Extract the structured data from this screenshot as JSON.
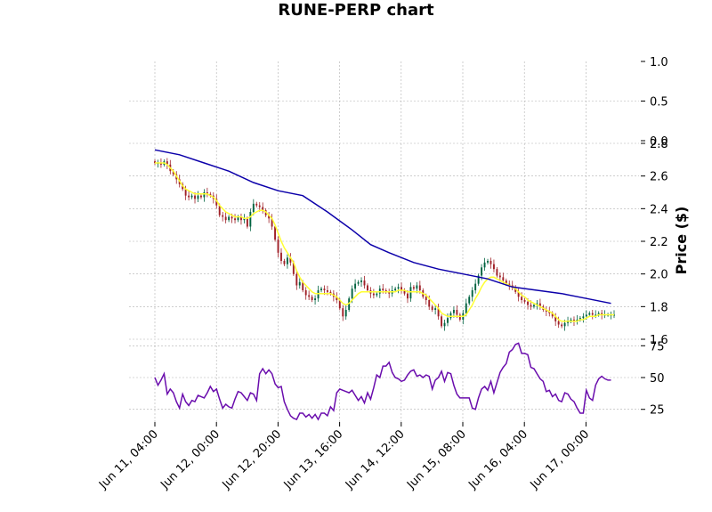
{
  "chart_data": {
    "type": "candlestick",
    "title": "RUNE-PERP chart",
    "colors": {
      "up": "#006340",
      "down": "#a02128",
      "ma_fast": "#ffff33",
      "ma_slow": "#0c00aa",
      "rsi": "#6a0dad",
      "grid": "#b0b0b0"
    },
    "grid": true,
    "x_ticks": [
      "Jun 11, 04:00",
      "Jun 12, 00:00",
      "Jun 12, 20:00",
      "Jun 13, 16:00",
      "Jun 14, 12:00",
      "Jun 15, 08:00",
      "Jun 16, 04:00",
      "Jun 17, 00:00"
    ],
    "x_tick_index": [
      0,
      20,
      40,
      60,
      80,
      100,
      120,
      140
    ],
    "top_panel": {
      "yticks": [
        0.0,
        0.5,
        1.0
      ],
      "ylim": [
        0,
        1
      ]
    },
    "price_panel": {
      "ylabel": "Price ($)",
      "ylim": [
        1.6,
        2.8
      ],
      "yticks": [
        1.6,
        1.8,
        2.0,
        2.2,
        2.4,
        2.6,
        2.8
      ],
      "close": [
        2.68,
        2.68,
        2.67,
        2.69,
        2.67,
        2.63,
        2.61,
        2.58,
        2.55,
        2.52,
        2.48,
        2.47,
        2.48,
        2.46,
        2.48,
        2.47,
        2.5,
        2.49,
        2.48,
        2.46,
        2.42,
        2.36,
        2.35,
        2.33,
        2.35,
        2.34,
        2.33,
        2.35,
        2.33,
        2.34,
        2.29,
        2.38,
        2.43,
        2.42,
        2.41,
        2.39,
        2.36,
        2.34,
        2.29,
        2.21,
        2.13,
        2.08,
        2.06,
        2.1,
        2.07,
        2.0,
        1.93,
        1.95,
        1.9,
        1.87,
        1.86,
        1.84,
        1.85,
        1.9,
        1.91,
        1.9,
        1.89,
        1.88,
        1.86,
        1.84,
        1.79,
        1.74,
        1.78,
        1.85,
        1.91,
        1.94,
        1.95,
        1.96,
        1.93,
        1.9,
        1.88,
        1.87,
        1.88,
        1.91,
        1.9,
        1.89,
        1.88,
        1.9,
        1.91,
        1.92,
        1.9,
        1.88,
        1.85,
        1.92,
        1.91,
        1.93,
        1.9,
        1.86,
        1.84,
        1.8,
        1.78,
        1.79,
        1.74,
        1.68,
        1.7,
        1.73,
        1.76,
        1.78,
        1.75,
        1.72,
        1.76,
        1.82,
        1.86,
        1.9,
        1.94,
        1.99,
        2.04,
        2.07,
        2.08,
        2.06,
        2.03,
        1.99,
        1.98,
        1.96,
        1.94,
        1.93,
        1.92,
        1.89,
        1.86,
        1.84,
        1.83,
        1.81,
        1.8,
        1.81,
        1.82,
        1.8,
        1.78,
        1.77,
        1.76,
        1.74,
        1.71,
        1.69,
        1.68,
        1.7,
        1.71,
        1.72,
        1.71,
        1.72,
        1.73,
        1.74,
        1.75,
        1.76,
        1.75,
        1.75,
        1.76,
        1.75,
        1.75,
        1.75,
        1.75,
        1.75
      ],
      "ma_fast": [
        2.68,
        2.68,
        2.68,
        2.68,
        2.67,
        2.65,
        2.63,
        2.6,
        2.57,
        2.54,
        2.52,
        2.51,
        2.5,
        2.49,
        2.49,
        2.49,
        2.49,
        2.49,
        2.48,
        2.47,
        2.45,
        2.42,
        2.4,
        2.38,
        2.37,
        2.36,
        2.35,
        2.35,
        2.35,
        2.34,
        2.34,
        2.35,
        2.37,
        2.38,
        2.39,
        2.39,
        2.38,
        2.36,
        2.34,
        2.3,
        2.25,
        2.2,
        2.16,
        2.13,
        2.1,
        2.07,
        2.02,
        1.98,
        1.95,
        1.93,
        1.91,
        1.89,
        1.88,
        1.88,
        1.88,
        1.88,
        1.88,
        1.88,
        1.87,
        1.86,
        1.84,
        1.82,
        1.81,
        1.82,
        1.84,
        1.86,
        1.88,
        1.89,
        1.89,
        1.89,
        1.89,
        1.89,
        1.89,
        1.89,
        1.89,
        1.89,
        1.89,
        1.89,
        1.89,
        1.9,
        1.9,
        1.9,
        1.89,
        1.89,
        1.89,
        1.89,
        1.89,
        1.88,
        1.87,
        1.85,
        1.83,
        1.81,
        1.79,
        1.76,
        1.75,
        1.74,
        1.74,
        1.74,
        1.74,
        1.74,
        1.74,
        1.75,
        1.78,
        1.81,
        1.85,
        1.88,
        1.92,
        1.95,
        1.97,
        1.98,
        1.98,
        1.97,
        1.96,
        1.95,
        1.94,
        1.93,
        1.92,
        1.91,
        1.89,
        1.87,
        1.86,
        1.84,
        1.83,
        1.82,
        1.81,
        1.8,
        1.79,
        1.78,
        1.77,
        1.76,
        1.74,
        1.72,
        1.71,
        1.71,
        1.71,
        1.71,
        1.71,
        1.71,
        1.72,
        1.72,
        1.73,
        1.74,
        1.74,
        1.74,
        1.75,
        1.75,
        1.75,
        1.75,
        1.75,
        1.75
      ],
      "ma_slow_x": [
        0,
        8,
        16,
        24,
        32,
        40,
        48,
        56,
        64,
        70,
        76,
        84,
        92,
        100,
        108,
        116,
        124,
        132,
        140,
        148
      ],
      "ma_slow": [
        2.76,
        2.73,
        2.68,
        2.63,
        2.56,
        2.51,
        2.48,
        2.38,
        2.27,
        2.18,
        2.13,
        2.07,
        2.03,
        2.0,
        1.97,
        1.92,
        1.9,
        1.88,
        1.85,
        1.82
      ]
    },
    "rsi_panel": {
      "ylim": [
        15,
        78
      ],
      "yticks": [
        25,
        50,
        75
      ],
      "values": [
        50,
        44,
        48,
        53,
        37,
        41,
        38,
        31,
        26,
        37,
        31,
        28,
        32,
        31,
        36,
        35,
        34,
        38,
        43,
        39,
        41,
        33,
        26,
        29,
        27,
        26,
        33,
        39,
        38,
        35,
        32,
        38,
        37,
        32,
        53,
        57,
        53,
        56,
        53,
        45,
        42,
        43,
        31,
        25,
        20,
        18,
        17,
        22,
        22,
        19,
        21,
        18,
        21,
        17,
        22,
        22,
        20,
        27,
        24,
        38,
        41,
        40,
        39,
        38,
        40,
        36,
        32,
        35,
        30,
        38,
        33,
        42,
        52,
        50,
        59,
        59,
        62,
        54,
        50,
        49,
        47,
        48,
        52,
        55,
        56,
        51,
        52,
        50,
        52,
        51,
        41,
        48,
        50,
        55,
        47,
        54,
        53,
        44,
        37,
        34,
        34,
        34,
        34,
        26,
        25,
        34,
        41,
        43,
        40,
        47,
        38,
        46,
        54,
        58,
        61,
        70,
        72,
        76,
        77,
        69,
        69,
        68,
        58,
        57,
        53,
        49,
        47,
        39,
        40,
        35,
        37,
        32,
        31,
        38,
        37,
        33,
        31,
        26,
        22,
        22,
        40,
        34,
        32,
        44,
        49,
        51,
        49,
        48,
        48
      ]
    }
  }
}
